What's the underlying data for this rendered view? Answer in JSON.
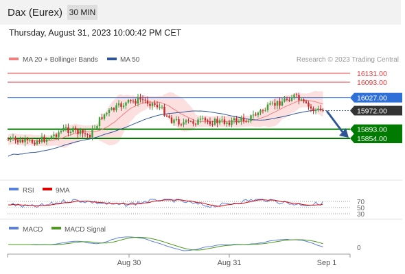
{
  "header": {
    "title": "Dax (Eurex)",
    "timeframe": "30 MIN",
    "datetime": "Thursday, August 31, 2023 10:00:42 PM CET"
  },
  "colors": {
    "bollinger": "#f08080",
    "ma50": "#2f5597",
    "support": "#007a00",
    "resistance": "#e63c3c",
    "pivot": "#2f6fd8",
    "price": "#333333",
    "rsi": "#5b7fde",
    "rsi_ma": "#dd0000",
    "macd": "#5b7fde",
    "macd_signal": "#4d9a1e"
  },
  "chart_data": [
    {
      "type": "candlestick",
      "legend": [
        "MA 20 + Bollinger Bands",
        "MA 50"
      ],
      "credit": "Research © 2023 Trading Central",
      "x_tick_labels": [
        "Aug 30",
        "Aug 31",
        "Sep 1"
      ],
      "ylim": [
        15740,
        16150
      ],
      "levels": [
        {
          "label": "16131.00",
          "value": 16131,
          "kind": "resistance"
        },
        {
          "label": "16093.00",
          "value": 16093,
          "kind": "resistance"
        },
        {
          "label": "16027.00",
          "value": 16027,
          "kind": "pivot"
        },
        {
          "label": "15972.00",
          "value": 15972,
          "kind": "last_price"
        },
        {
          "label": "15893.00",
          "value": 15893,
          "kind": "support"
        },
        {
          "label": "15854.00",
          "value": 15854,
          "kind": "support"
        }
      ],
      "projected_direction": "down"
    },
    {
      "type": "line",
      "legend": [
        "RSI",
        "9MA"
      ],
      "y_tick_labels": [
        "70",
        "50",
        "30"
      ],
      "ylim": [
        20,
        80
      ]
    },
    {
      "type": "line",
      "legend": [
        "MACD",
        "MACD Signal"
      ],
      "y_tick_labels": [
        "0"
      ]
    }
  ]
}
